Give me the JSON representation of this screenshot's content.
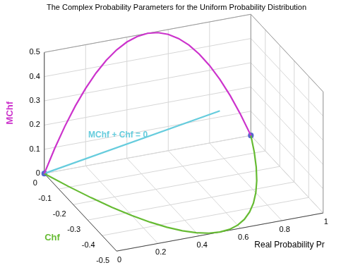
{
  "chart_data": {
    "type": "line",
    "title": "The Complex Probability Parameters for the Uniform Probability Distribution",
    "xlabel": "Real Probability Pr",
    "ylabel": "Chf",
    "zlabel": "MChf",
    "xlim": [
      0,
      1
    ],
    "ylim": [
      -0.5,
      0
    ],
    "zlim": [
      0,
      0.5
    ],
    "xticks": [
      0,
      0.2,
      0.4,
      0.6,
      0.8,
      1
    ],
    "yticks": [
      -0.5,
      -0.4,
      -0.3,
      -0.2,
      -0.1,
      0
    ],
    "zticks": [
      0,
      0.1,
      0.2,
      0.3,
      0.4,
      0.5
    ],
    "grid": true,
    "series": [
      {
        "color": "#cc33cc",
        "line_style": "solid",
        "x": [
          0,
          0.05,
          0.1,
          0.15,
          0.2,
          0.25,
          0.3,
          0.35,
          0.4,
          0.45,
          0.5,
          0.55,
          0.6,
          0.65,
          0.7,
          0.75,
          0.8,
          0.85,
          0.9,
          0.95,
          1
        ],
        "y": [
          0,
          0,
          0,
          0,
          0,
          0,
          0,
          0,
          0,
          0,
          0,
          0,
          0,
          0,
          0,
          0,
          0,
          0,
          0,
          0,
          0
        ],
        "z": [
          0,
          0.095,
          0.18,
          0.255,
          0.32,
          0.375,
          0.42,
          0.455,
          0.48,
          0.495,
          0.5,
          0.495,
          0.48,
          0.455,
          0.42,
          0.375,
          0.32,
          0.255,
          0.18,
          0.095,
          0
        ]
      },
      {
        "color": "#66bb33",
        "line_style": "solid",
        "x": [
          0,
          0.05,
          0.1,
          0.15,
          0.2,
          0.25,
          0.3,
          0.35,
          0.4,
          0.45,
          0.5,
          0.55,
          0.6,
          0.65,
          0.7,
          0.75,
          0.8,
          0.85,
          0.9,
          0.95,
          1
        ],
        "y": [
          0,
          -0.095,
          -0.18,
          -0.255,
          -0.32,
          -0.375,
          -0.42,
          -0.455,
          -0.48,
          -0.495,
          -0.5,
          -0.495,
          -0.48,
          -0.455,
          -0.42,
          -0.375,
          -0.32,
          -0.255,
          -0.18,
          -0.095,
          0
        ],
        "z": [
          0,
          0,
          0,
          0,
          0,
          0,
          0,
          0,
          0,
          0,
          0,
          0,
          0,
          0,
          0,
          0,
          0,
          0,
          0,
          0,
          0
        ]
      },
      {
        "color": "#66ccdd",
        "line_style": "solid",
        "x": [
          0,
          0.5
        ],
        "y": [
          0,
          -0.5
        ],
        "z": [
          0,
          0.5
        ]
      },
      {
        "color": "#5566cc",
        "line_style": "none",
        "marker": "circle",
        "x": [
          0,
          1
        ],
        "y": [
          0,
          0
        ],
        "z": [
          0,
          0
        ]
      }
    ],
    "annotations": [
      {
        "text": "MChf + Chf = 0",
        "color": "#66ccdd"
      }
    ]
  }
}
